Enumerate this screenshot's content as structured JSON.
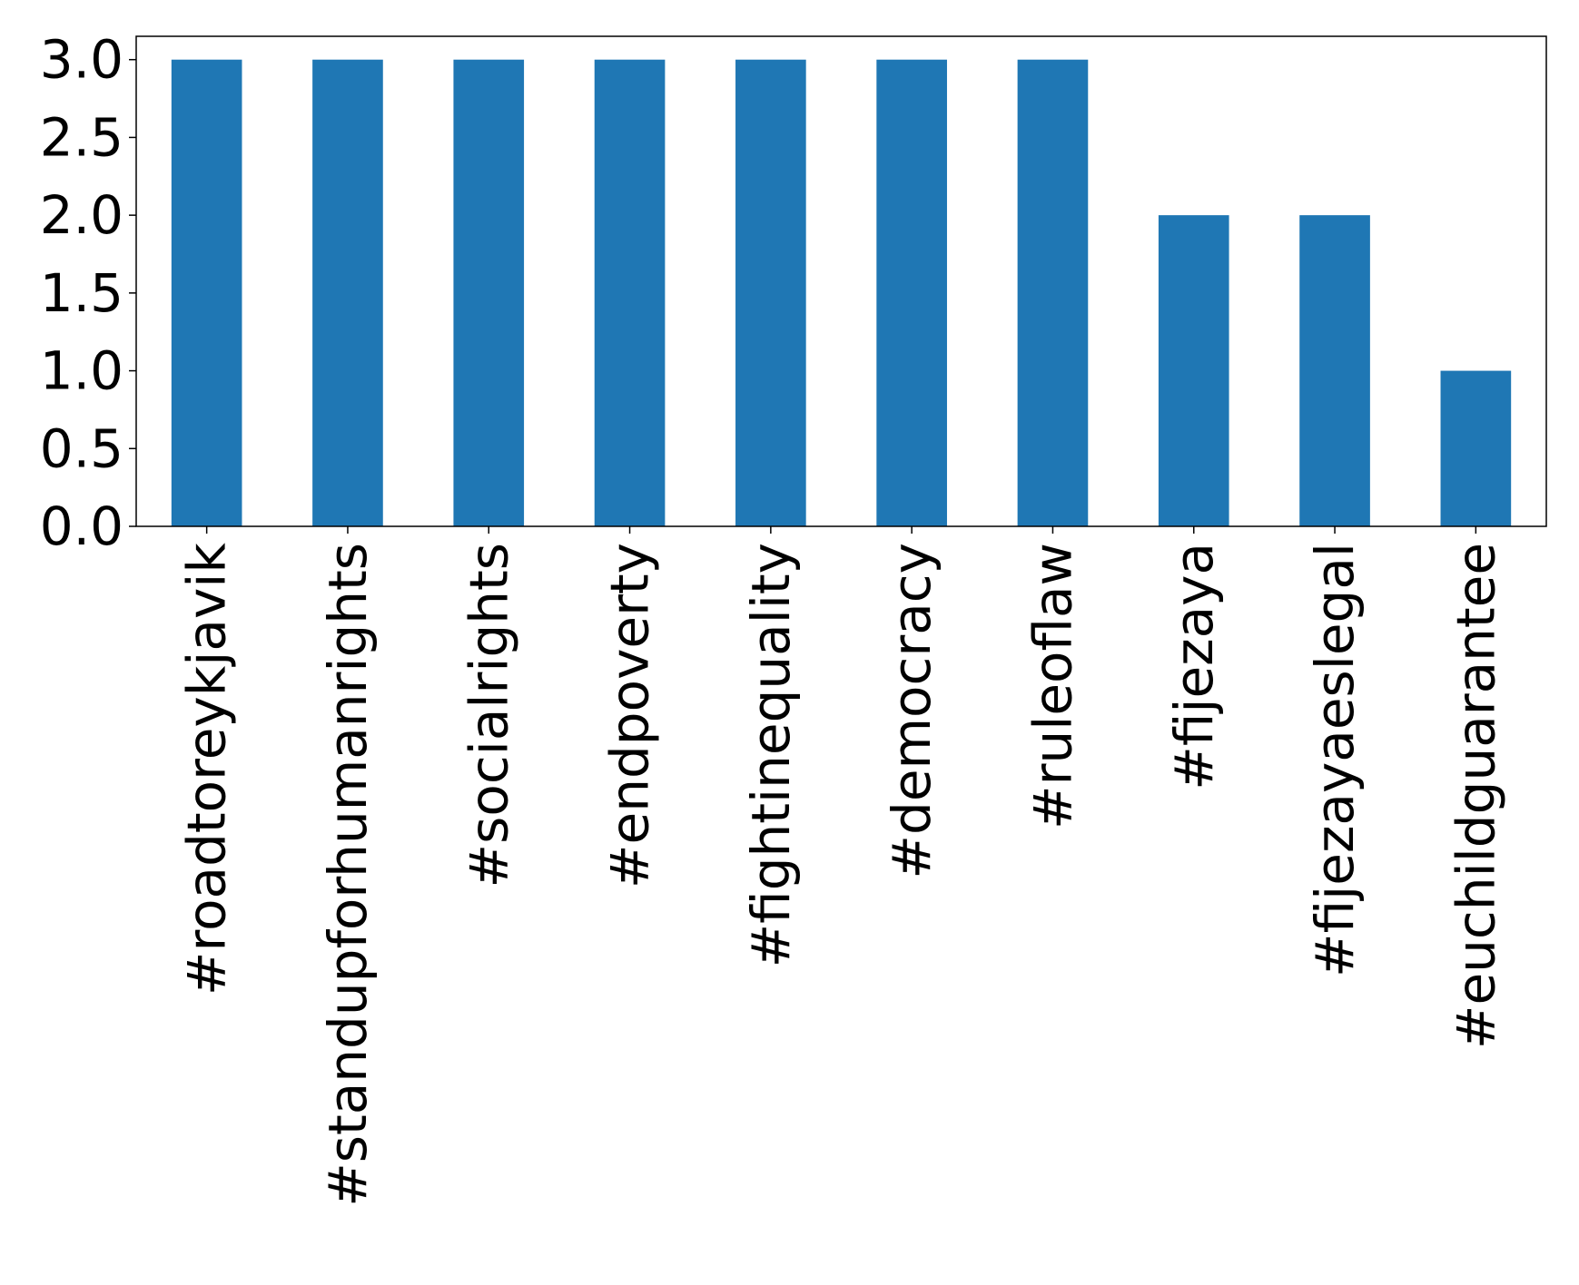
{
  "chart_data": {
    "type": "bar",
    "categories": [
      "#roadtoreykjavik",
      "#standupforhumanrights",
      "#socialrights",
      "#endpoverty",
      "#fightinequality",
      "#democracy",
      "#ruleoflaw",
      "#fijezaya",
      "#fijezayaeslegal",
      "#euchildguarantee"
    ],
    "values": [
      3,
      3,
      3,
      3,
      3,
      3,
      3,
      2,
      2,
      1
    ],
    "yticks": [
      "0.0",
      "0.5",
      "1.0",
      "1.5",
      "2.0",
      "2.5",
      "3.0"
    ],
    "ylim": [
      0,
      3.15
    ],
    "title": "",
    "xlabel": "",
    "ylabel": "",
    "grid": false,
    "bar_color": "#1f77b4"
  }
}
